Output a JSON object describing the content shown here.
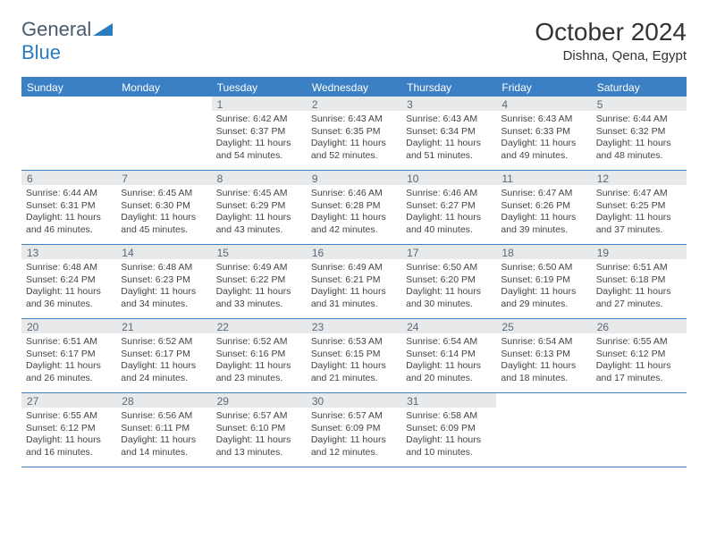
{
  "brand": {
    "part1": "General",
    "part2": "Blue"
  },
  "title": "October 2024",
  "location": "Dishna, Qena, Egypt",
  "colors": {
    "header_blue": "#3b7fc4",
    "daynum_bg": "#e7e9eb",
    "daynum_text": "#5a6a7a",
    "body_text": "#444444"
  },
  "day_headers": [
    "Sunday",
    "Monday",
    "Tuesday",
    "Wednesday",
    "Thursday",
    "Friday",
    "Saturday"
  ],
  "weeks": [
    [
      {
        "day": "",
        "lines": []
      },
      {
        "day": "",
        "lines": []
      },
      {
        "day": "1",
        "lines": [
          "Sunrise: 6:42 AM",
          "Sunset: 6:37 PM",
          "Daylight: 11 hours and 54 minutes."
        ]
      },
      {
        "day": "2",
        "lines": [
          "Sunrise: 6:43 AM",
          "Sunset: 6:35 PM",
          "Daylight: 11 hours and 52 minutes."
        ]
      },
      {
        "day": "3",
        "lines": [
          "Sunrise: 6:43 AM",
          "Sunset: 6:34 PM",
          "Daylight: 11 hours and 51 minutes."
        ]
      },
      {
        "day": "4",
        "lines": [
          "Sunrise: 6:43 AM",
          "Sunset: 6:33 PM",
          "Daylight: 11 hours and 49 minutes."
        ]
      },
      {
        "day": "5",
        "lines": [
          "Sunrise: 6:44 AM",
          "Sunset: 6:32 PM",
          "Daylight: 11 hours and 48 minutes."
        ]
      }
    ],
    [
      {
        "day": "6",
        "lines": [
          "Sunrise: 6:44 AM",
          "Sunset: 6:31 PM",
          "Daylight: 11 hours and 46 minutes."
        ]
      },
      {
        "day": "7",
        "lines": [
          "Sunrise: 6:45 AM",
          "Sunset: 6:30 PM",
          "Daylight: 11 hours and 45 minutes."
        ]
      },
      {
        "day": "8",
        "lines": [
          "Sunrise: 6:45 AM",
          "Sunset: 6:29 PM",
          "Daylight: 11 hours and 43 minutes."
        ]
      },
      {
        "day": "9",
        "lines": [
          "Sunrise: 6:46 AM",
          "Sunset: 6:28 PM",
          "Daylight: 11 hours and 42 minutes."
        ]
      },
      {
        "day": "10",
        "lines": [
          "Sunrise: 6:46 AM",
          "Sunset: 6:27 PM",
          "Daylight: 11 hours and 40 minutes."
        ]
      },
      {
        "day": "11",
        "lines": [
          "Sunrise: 6:47 AM",
          "Sunset: 6:26 PM",
          "Daylight: 11 hours and 39 minutes."
        ]
      },
      {
        "day": "12",
        "lines": [
          "Sunrise: 6:47 AM",
          "Sunset: 6:25 PM",
          "Daylight: 11 hours and 37 minutes."
        ]
      }
    ],
    [
      {
        "day": "13",
        "lines": [
          "Sunrise: 6:48 AM",
          "Sunset: 6:24 PM",
          "Daylight: 11 hours and 36 minutes."
        ]
      },
      {
        "day": "14",
        "lines": [
          "Sunrise: 6:48 AM",
          "Sunset: 6:23 PM",
          "Daylight: 11 hours and 34 minutes."
        ]
      },
      {
        "day": "15",
        "lines": [
          "Sunrise: 6:49 AM",
          "Sunset: 6:22 PM",
          "Daylight: 11 hours and 33 minutes."
        ]
      },
      {
        "day": "16",
        "lines": [
          "Sunrise: 6:49 AM",
          "Sunset: 6:21 PM",
          "Daylight: 11 hours and 31 minutes."
        ]
      },
      {
        "day": "17",
        "lines": [
          "Sunrise: 6:50 AM",
          "Sunset: 6:20 PM",
          "Daylight: 11 hours and 30 minutes."
        ]
      },
      {
        "day": "18",
        "lines": [
          "Sunrise: 6:50 AM",
          "Sunset: 6:19 PM",
          "Daylight: 11 hours and 29 minutes."
        ]
      },
      {
        "day": "19",
        "lines": [
          "Sunrise: 6:51 AM",
          "Sunset: 6:18 PM",
          "Daylight: 11 hours and 27 minutes."
        ]
      }
    ],
    [
      {
        "day": "20",
        "lines": [
          "Sunrise: 6:51 AM",
          "Sunset: 6:17 PM",
          "Daylight: 11 hours and 26 minutes."
        ]
      },
      {
        "day": "21",
        "lines": [
          "Sunrise: 6:52 AM",
          "Sunset: 6:17 PM",
          "Daylight: 11 hours and 24 minutes."
        ]
      },
      {
        "day": "22",
        "lines": [
          "Sunrise: 6:52 AM",
          "Sunset: 6:16 PM",
          "Daylight: 11 hours and 23 minutes."
        ]
      },
      {
        "day": "23",
        "lines": [
          "Sunrise: 6:53 AM",
          "Sunset: 6:15 PM",
          "Daylight: 11 hours and 21 minutes."
        ]
      },
      {
        "day": "24",
        "lines": [
          "Sunrise: 6:54 AM",
          "Sunset: 6:14 PM",
          "Daylight: 11 hours and 20 minutes."
        ]
      },
      {
        "day": "25",
        "lines": [
          "Sunrise: 6:54 AM",
          "Sunset: 6:13 PM",
          "Daylight: 11 hours and 18 minutes."
        ]
      },
      {
        "day": "26",
        "lines": [
          "Sunrise: 6:55 AM",
          "Sunset: 6:12 PM",
          "Daylight: 11 hours and 17 minutes."
        ]
      }
    ],
    [
      {
        "day": "27",
        "lines": [
          "Sunrise: 6:55 AM",
          "Sunset: 6:12 PM",
          "Daylight: 11 hours and 16 minutes."
        ]
      },
      {
        "day": "28",
        "lines": [
          "Sunrise: 6:56 AM",
          "Sunset: 6:11 PM",
          "Daylight: 11 hours and 14 minutes."
        ]
      },
      {
        "day": "29",
        "lines": [
          "Sunrise: 6:57 AM",
          "Sunset: 6:10 PM",
          "Daylight: 11 hours and 13 minutes."
        ]
      },
      {
        "day": "30",
        "lines": [
          "Sunrise: 6:57 AM",
          "Sunset: 6:09 PM",
          "Daylight: 11 hours and 12 minutes."
        ]
      },
      {
        "day": "31",
        "lines": [
          "Sunrise: 6:58 AM",
          "Sunset: 6:09 PM",
          "Daylight: 11 hours and 10 minutes."
        ]
      },
      {
        "day": "",
        "lines": []
      },
      {
        "day": "",
        "lines": []
      }
    ]
  ]
}
